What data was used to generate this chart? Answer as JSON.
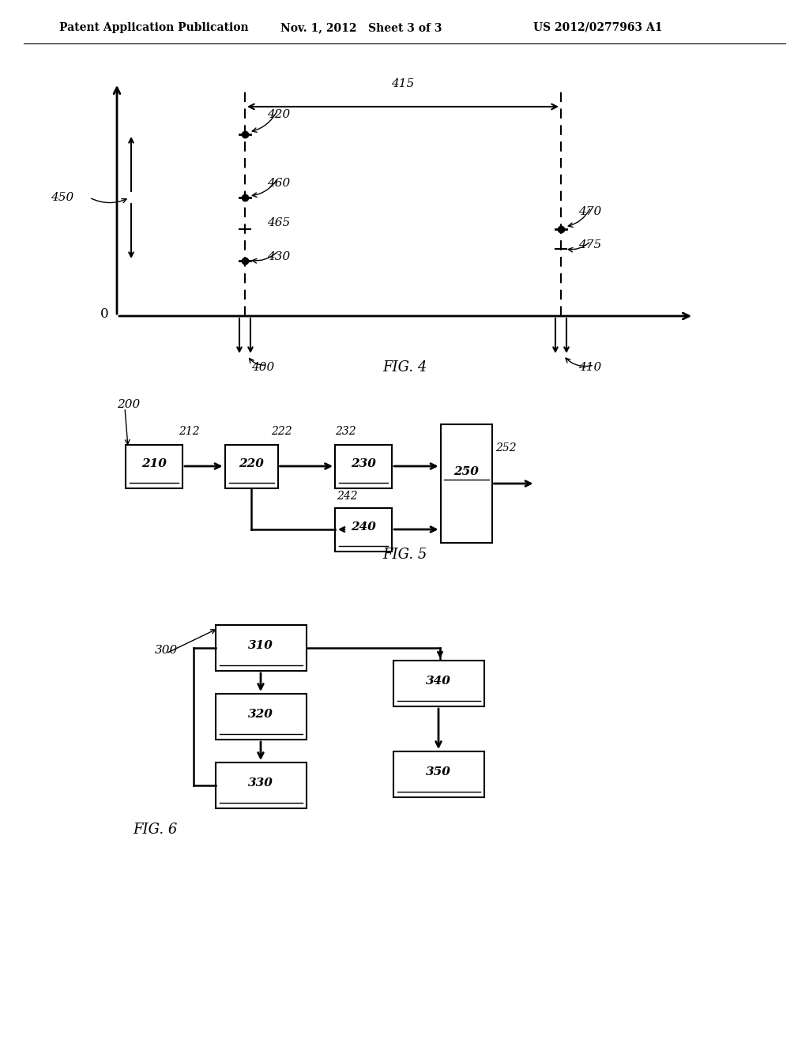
{
  "header_left": "Patent Application Publication",
  "header_mid": "Nov. 1, 2012   Sheet 3 of 3",
  "header_right": "US 2012/0277963 A1",
  "fig4_caption": "FIG. 4",
  "fig5_caption": "FIG. 5",
  "fig6_caption": "FIG. 6",
  "bg_color": "#ffffff",
  "line_color": "#000000"
}
